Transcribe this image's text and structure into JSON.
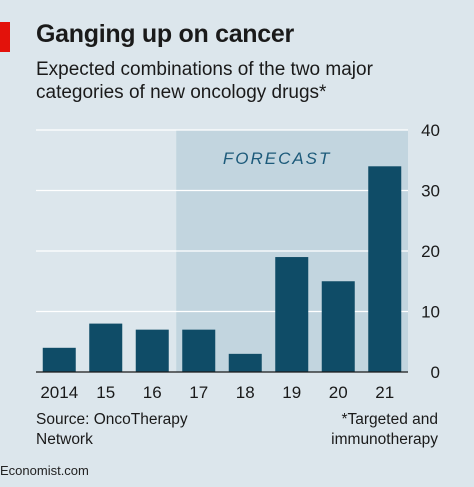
{
  "header": {
    "title": "Ganging up on cancer",
    "subtitle": "Expected combinations of the two major categories of new oncology drugs*"
  },
  "footer": {
    "source": "Source: OncoTherapy Network",
    "footnote": "*Targeted and immunotherapy",
    "brand": "Economist.com"
  },
  "colors": {
    "bar": "#0f4c67",
    "forecast_band": "#c2d5df",
    "background": "#dce6ec",
    "gridline": "#ffffff",
    "accent": "#e3120b"
  },
  "chart_data": {
    "type": "bar",
    "categories": [
      "2014",
      "15",
      "16",
      "17",
      "18",
      "19",
      "20",
      "21"
    ],
    "values": [
      4,
      8,
      7,
      7,
      3,
      19,
      15,
      34
    ],
    "ylim": [
      0,
      40
    ],
    "yticks": [
      0,
      10,
      20,
      30,
      40
    ],
    "grid": true,
    "y_axis_side": "right",
    "forecast": {
      "label": "FORECAST",
      "from_category": "17",
      "to_category": "21"
    }
  }
}
